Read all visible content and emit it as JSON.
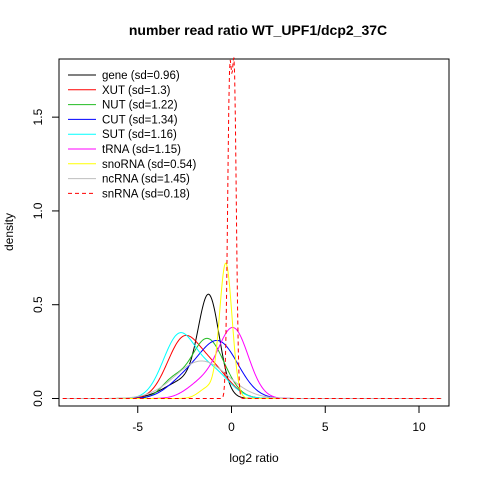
{
  "chart_data": {
    "type": "line",
    "title": "number read ratio WT_UPF1/dcp2_37C",
    "xlabel": "log2 ratio",
    "ylabel": "density",
    "xlim": [
      -9.2,
      11.6
    ],
    "ylim": [
      -0.04,
      1.81
    ],
    "x_ticks": [
      -5,
      0,
      5,
      10
    ],
    "y_ticks": [
      0.0,
      0.5,
      1.0,
      1.5
    ],
    "y_tick_labels": [
      "0.0",
      "0.5",
      "1.0",
      "1.5"
    ],
    "legend_position": "top-left",
    "x_support": [
      -9,
      11.2
    ],
    "series": [
      {
        "name": "gene (sd=0.96)",
        "color": "#000000",
        "dash": false,
        "components": [
          {
            "mu": -1.2,
            "sigma": 0.55,
            "height": 0.5
          },
          {
            "mu": -2.4,
            "sigma": 1.1,
            "height": 0.1
          }
        ]
      },
      {
        "name": "XUT (sd=1.3)",
        "color": "#ff0000",
        "dash": false,
        "components": [
          {
            "mu": -2.6,
            "sigma": 0.85,
            "height": 0.3
          },
          {
            "mu": -1.0,
            "sigma": 0.9,
            "height": 0.15
          }
        ]
      },
      {
        "name": "NUT (sd=1.22)",
        "color": "#22bb22",
        "dash": false,
        "components": [
          {
            "mu": -1.3,
            "sigma": 0.9,
            "height": 0.32
          },
          {
            "mu": -3.2,
            "sigma": 0.6,
            "height": 0.08
          }
        ]
      },
      {
        "name": "CUT (sd=1.34)",
        "color": "#0000ff",
        "dash": false,
        "components": [
          {
            "mu": -0.7,
            "sigma": 1.05,
            "height": 0.3
          },
          {
            "mu": -2.6,
            "sigma": 0.9,
            "height": 0.08
          }
        ]
      },
      {
        "name": "SUT (sd=1.16)",
        "color": "#00ffff",
        "dash": false,
        "components": [
          {
            "mu": -2.8,
            "sigma": 0.85,
            "height": 0.33
          },
          {
            "mu": -1.0,
            "sigma": 0.9,
            "height": 0.14
          }
        ]
      },
      {
        "name": "tRNA (sd=1.15)",
        "color": "#ff00ff",
        "dash": false,
        "components": [
          {
            "mu": 0.1,
            "sigma": 0.8,
            "height": 0.37
          },
          {
            "mu": -1.6,
            "sigma": 0.8,
            "height": 0.08
          }
        ]
      },
      {
        "name": "snoRNA (sd=0.54)",
        "color": "#ffff00",
        "dash": false,
        "components": [
          {
            "mu": -0.3,
            "sigma": 0.33,
            "height": 0.71
          },
          {
            "mu": -1.2,
            "sigma": 0.5,
            "height": 0.06
          }
        ]
      },
      {
        "name": "ncRNA (sd=1.45)",
        "color": "#bebebe",
        "dash": false,
        "components": [
          {
            "mu": -1.6,
            "sigma": 1.4,
            "height": 0.2
          }
        ]
      },
      {
        "name": "snRNA (sd=0.18)",
        "color": "#ff0000",
        "dash": true,
        "components": [
          {
            "mu": -0.1,
            "sigma": 0.11,
            "height": 1.64
          },
          {
            "mu": 0.15,
            "sigma": 0.11,
            "height": 1.66
          }
        ]
      }
    ]
  }
}
